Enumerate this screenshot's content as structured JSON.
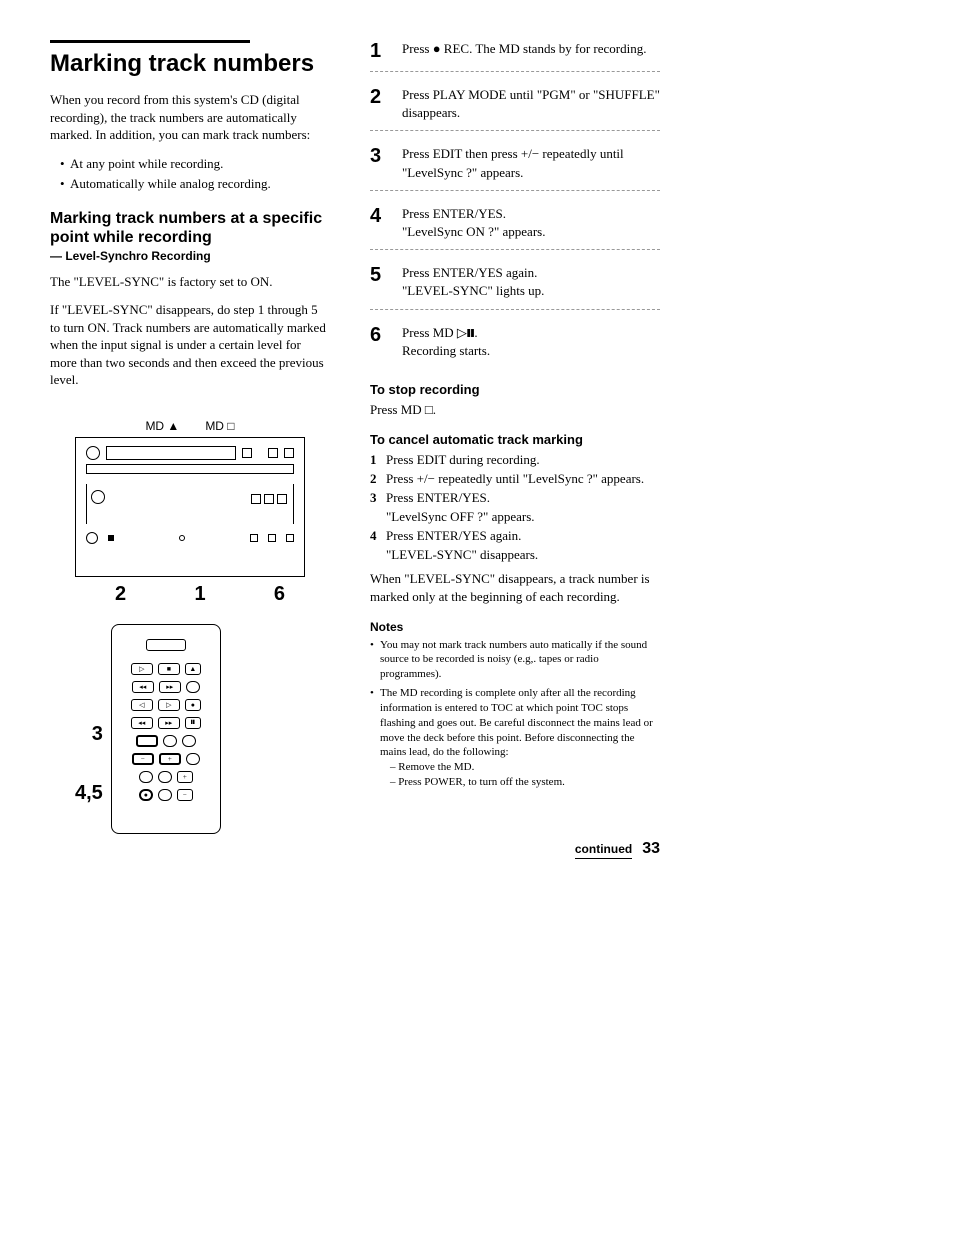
{
  "left": {
    "main_title": "Marking track numbers",
    "intro": "When you record from this system's CD (digital recording), the track numbers are automatically marked. In addition, you can mark track numbers:",
    "bullets": [
      "At any point while recording.",
      "Automatically while analog recording."
    ],
    "sub_title": "Marking track numbers at a specific point while recording",
    "sub_sub": "— Level-Synchro Recording",
    "para1": "The \"LEVEL-SYNC\" is factory set to ON.",
    "para2": "If \"LEVEL-SYNC\" disappears, do step 1 through 5 to turn ON. Track numbers are automatically marked when the input signal is under a certain level for more than two seconds and then exceed the previous level.",
    "diag_label1": "MD ▲",
    "diag_label2": "MD □",
    "callout_2": "2",
    "callout_1": "1",
    "callout_6": "6",
    "callout_3": "3",
    "callout_45": "4,5"
  },
  "right": {
    "steps": [
      {
        "n": "1",
        "t": "Press ● REC. The MD stands by for recording."
      },
      {
        "n": "2",
        "t": "Press PLAY MODE until \"PGM\" or \"SHUFFLE\" disappears."
      },
      {
        "n": "3",
        "t": "Press EDIT then press +/− repeatedly until \"LevelSync ?\" appears."
      },
      {
        "n": "4",
        "t": "Press ENTER/YES.\n\"LevelSync ON ?\" appears."
      },
      {
        "n": "5",
        "t": "Press ENTER/YES again.\n\"LEVEL-SYNC\" lights up."
      },
      {
        "n": "6",
        "t": "Press MD ▷𝅛𝅛.\nRecording starts."
      }
    ],
    "stop_title": "To stop recording",
    "stop_text": "Press MD □.",
    "cancel_title": "To cancel automatic track marking",
    "cancel_steps": [
      {
        "n": "1",
        "t": "Press EDIT during recording."
      },
      {
        "n": "2",
        "t": "Press +/− repeatedly until \"LevelSync ?\" appears."
      },
      {
        "n": "3",
        "t": "Press ENTER/YES.\n\"LevelSync OFF ?\" appears."
      },
      {
        "n": "4",
        "t": "Press ENTER/YES again.\n\"LEVEL-SYNC\" disappears."
      }
    ],
    "cancel_after": "When \"LEVEL-SYNC\" disappears, a track number is marked only at the beginning of each recording.",
    "notes_title": "Notes",
    "notes": [
      "You may not mark track numbers auto matically if the sound source to be recorded is noisy (e.g,. tapes or radio programmes).",
      "The MD recording is complete only after all the recording information is entered to TOC at which point TOC stops flashing and goes out. Be careful disconnect the mains lead or move the deck before this point. Before disconnecting the mains lead, do the following:"
    ],
    "notes_sub": [
      "– Remove the MD.",
      "– Press POWER, to turn off the system."
    ],
    "continued": "continued",
    "page_num": "33"
  }
}
